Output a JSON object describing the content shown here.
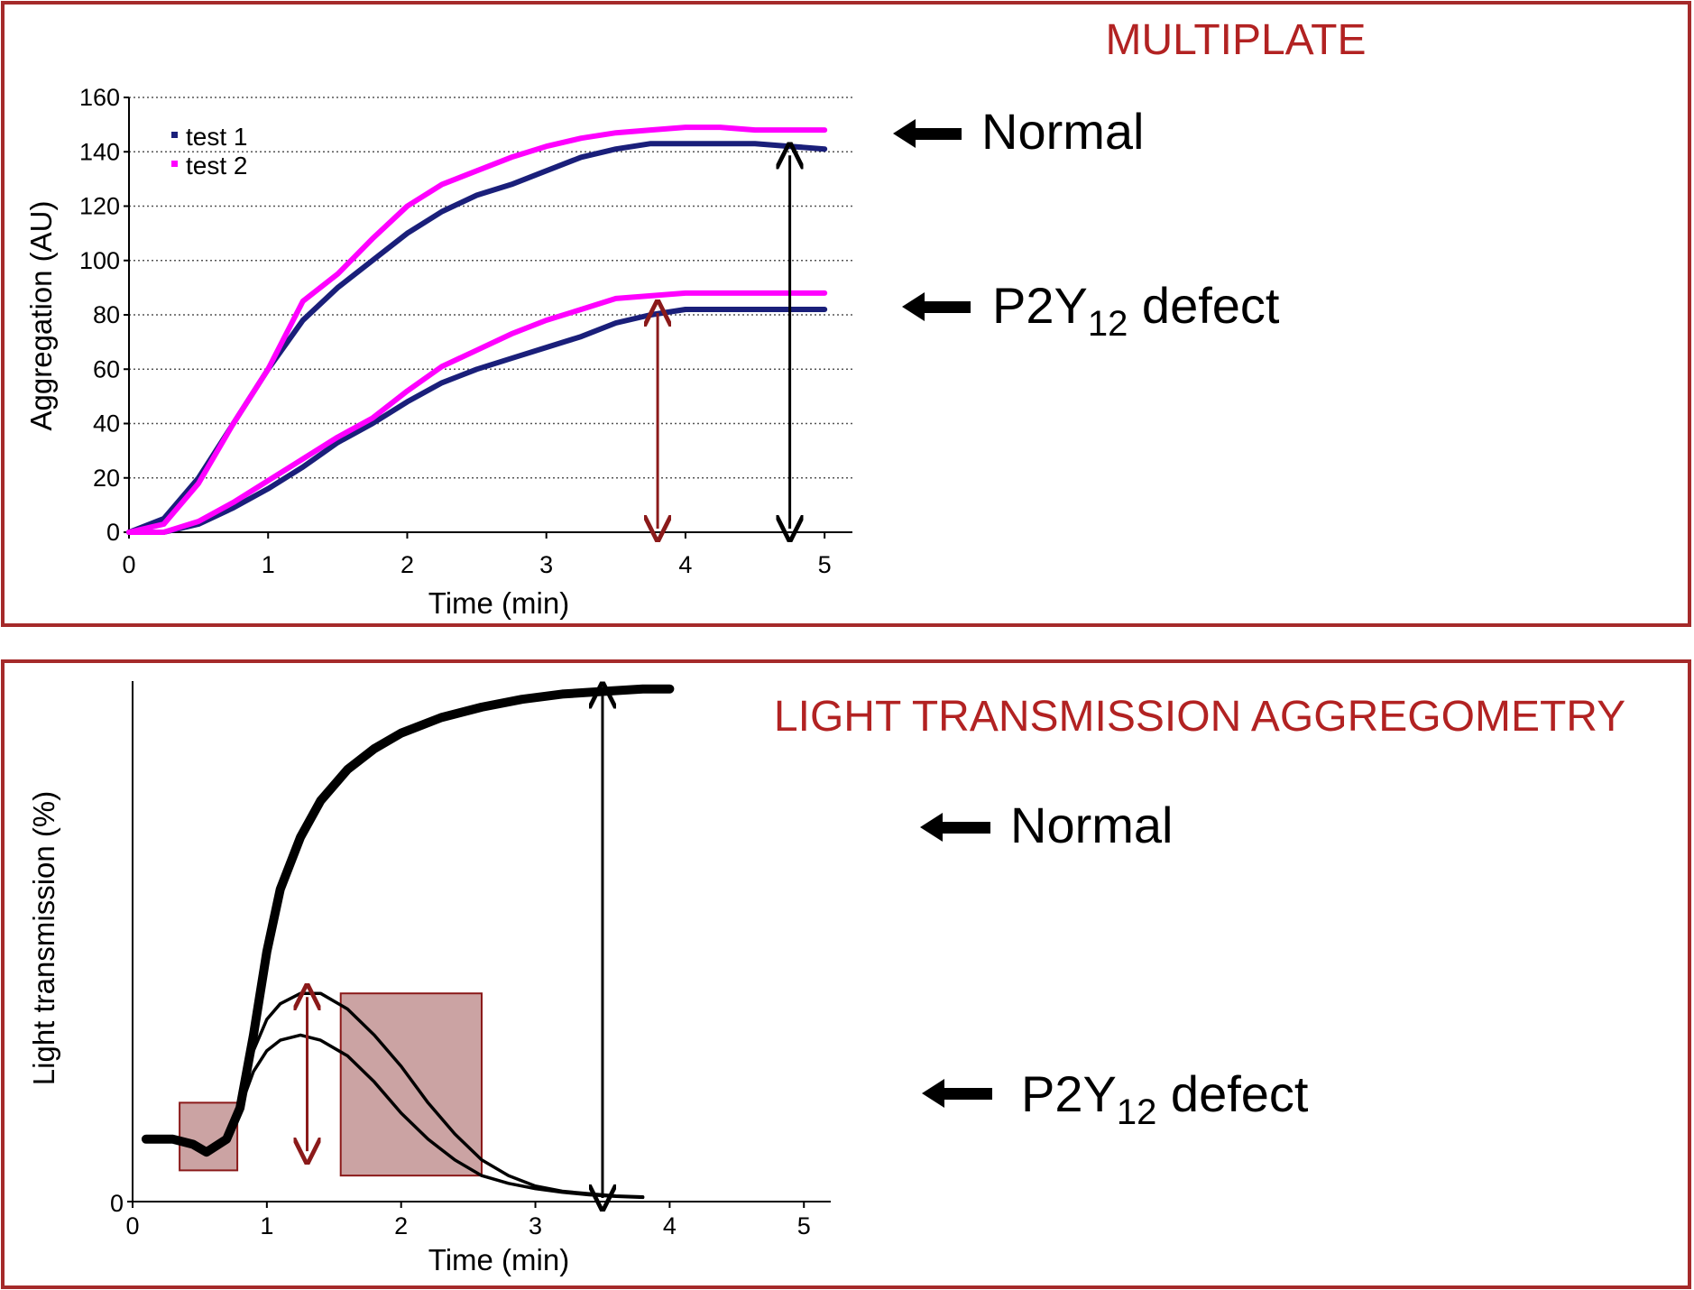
{
  "colors": {
    "frame": "#a52a2a",
    "title": "#b22222",
    "series_test1": "#1a1f7a",
    "series_test2": "#ff00ff",
    "arrow_dark": "#000000",
    "arrow_red": "#8b1a1a",
    "highlight_fill": "#b98484",
    "highlight_stroke": "#8b1a1a"
  },
  "chart_data": [
    {
      "type": "line",
      "title": "MULTIPLATE",
      "xlabel": "Time (min)",
      "ylabel": "Aggregation (AU)",
      "xlim": [
        0,
        5.2
      ],
      "ylim": [
        0,
        160
      ],
      "x_ticks": [
        "0",
        "1",
        "2",
        "3",
        "4",
        "5"
      ],
      "y_ticks": [
        "0",
        "20",
        "40",
        "60",
        "80",
        "100",
        "120",
        "140",
        "160"
      ],
      "grid": "horizontal-dotted",
      "legend": {
        "placement": "top-left",
        "entries": [
          "test 1",
          "test 2"
        ]
      },
      "series": [
        {
          "name": "test 1",
          "group": "Normal",
          "x": [
            0,
            0.25,
            0.5,
            0.75,
            1.0,
            1.25,
            1.5,
            1.75,
            2.0,
            2.25,
            2.5,
            2.75,
            3.0,
            3.25,
            3.5,
            3.75,
            4.0,
            4.25,
            4.5,
            4.75,
            5.0
          ],
          "values": [
            0,
            5,
            20,
            40,
            60,
            78,
            90,
            100,
            110,
            118,
            124,
            128,
            133,
            138,
            141,
            143,
            143,
            143,
            143,
            142,
            141
          ]
        },
        {
          "name": "test 2",
          "group": "Normal",
          "x": [
            0,
            0.25,
            0.5,
            0.75,
            1.0,
            1.25,
            1.5,
            1.75,
            2.0,
            2.25,
            2.5,
            2.75,
            3.0,
            3.25,
            3.5,
            3.75,
            4.0,
            4.25,
            4.5,
            4.75,
            5.0
          ],
          "values": [
            0,
            3,
            18,
            40,
            60,
            85,
            95,
            108,
            120,
            128,
            133,
            138,
            142,
            145,
            147,
            148,
            149,
            149,
            148,
            148,
            148
          ]
        },
        {
          "name": "test 1",
          "group": "P2Y12 defect",
          "x": [
            0,
            0.25,
            0.5,
            0.75,
            1.0,
            1.25,
            1.5,
            1.75,
            2.0,
            2.25,
            2.5,
            2.75,
            3.0,
            3.25,
            3.5,
            3.75,
            4.0,
            4.25,
            4.5,
            4.75,
            5.0
          ],
          "values": [
            0,
            0,
            3,
            9,
            16,
            24,
            33,
            40,
            48,
            55,
            60,
            64,
            68,
            72,
            77,
            80,
            82,
            82,
            82,
            82,
            82
          ]
        },
        {
          "name": "test 2",
          "group": "P2Y12 defect",
          "x": [
            0,
            0.25,
            0.5,
            0.75,
            1.0,
            1.25,
            1.5,
            1.75,
            2.0,
            2.25,
            2.5,
            2.75,
            3.0,
            3.25,
            3.5,
            3.75,
            4.0,
            4.25,
            4.5,
            4.75,
            5.0
          ],
          "values": [
            0,
            0,
            4,
            11,
            19,
            27,
            35,
            42,
            52,
            61,
            67,
            73,
            78,
            82,
            86,
            87,
            88,
            88,
            88,
            88,
            88
          ]
        }
      ],
      "annotations": [
        {
          "label": "Normal",
          "arrow_at": {
            "x": 4.75,
            "from": 0,
            "to": 140
          }
        },
        {
          "label_main": "P2Y",
          "label_sub": "12",
          "label_tail": " defect",
          "arrow_at": {
            "x": 3.8,
            "from": 0,
            "to": 82
          }
        }
      ]
    },
    {
      "type": "line",
      "title": "LIGHT TRANSMISSION AGGREGOMETRY",
      "xlabel": "Time (min)",
      "ylabel": "Light transmission (%)",
      "xlim": [
        0,
        5.2
      ],
      "ylim": [
        0,
        100
      ],
      "x_ticks": [
        "0",
        "1",
        "2",
        "3",
        "4",
        "5"
      ],
      "y_ticks": [
        "0"
      ],
      "series": [
        {
          "group": "Normal",
          "x": [
            0.1,
            0.3,
            0.45,
            0.55,
            0.7,
            0.8,
            0.9,
            1.0,
            1.1,
            1.25,
            1.4,
            1.6,
            1.8,
            2.0,
            2.3,
            2.6,
            2.9,
            3.2,
            3.5,
            3.8,
            4.0
          ],
          "values": [
            12,
            12,
            11,
            9.5,
            12,
            18,
            32,
            48,
            60,
            70,
            77,
            83,
            87,
            90,
            93,
            95,
            96.5,
            97.5,
            98,
            98.5,
            98.5
          ]
        },
        {
          "group": "P2Y12 defect",
          "x": [
            0.1,
            0.3,
            0.45,
            0.55,
            0.7,
            0.8,
            0.9,
            1.0,
            1.1,
            1.25,
            1.4,
            1.6,
            1.8,
            2.0,
            2.2,
            2.4,
            2.6,
            2.8,
            3.0,
            3.2,
            3.4,
            3.6,
            3.8
          ],
          "values": [
            12,
            12,
            11,
            9.5,
            12,
            18,
            25,
            29,
            31,
            32,
            31,
            28,
            23,
            17,
            12,
            8,
            5,
            3.5,
            2.5,
            1.8,
            1.3,
            1.0,
            0.8
          ]
        },
        {
          "group": "P2Y12 defect",
          "x": [
            0.1,
            0.3,
            0.45,
            0.55,
            0.7,
            0.8,
            0.9,
            1.0,
            1.1,
            1.25,
            1.4,
            1.6,
            1.8,
            2.0,
            2.2,
            2.4,
            2.6,
            2.8,
            3.0,
            3.2,
            3.4,
            3.6,
            3.8
          ],
          "values": [
            12,
            12,
            11,
            9.5,
            12,
            19,
            29,
            35,
            38,
            40,
            40,
            37,
            32,
            26,
            19,
            13,
            8,
            5,
            3,
            2,
            1.5,
            1.1,
            0.9
          ]
        }
      ],
      "highlights": [
        {
          "x_range": [
            0.35,
            0.78
          ],
          "y_range": [
            6,
            19
          ]
        },
        {
          "x_range": [
            1.55,
            2.6
          ],
          "y_range": [
            5,
            40
          ]
        }
      ],
      "annotations": [
        {
          "label": "Normal",
          "arrow_at": {
            "x": 3.5,
            "from": 0,
            "to": 98
          }
        },
        {
          "label_main": "P2Y",
          "label_sub": "12",
          "label_tail": " defect",
          "arrow_at": {
            "x": 1.3,
            "from": 9,
            "to": 40
          }
        }
      ]
    }
  ]
}
